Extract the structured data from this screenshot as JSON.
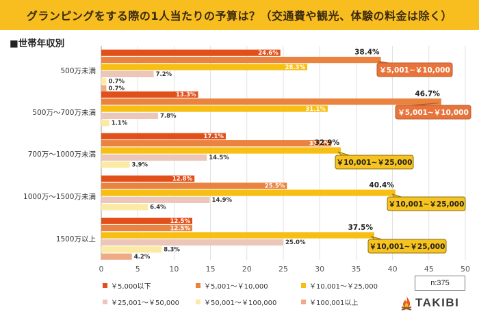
{
  "title": "グランピングをする際の1人当たりの予算は？（交通費や観光、体験の料金は除く）",
  "subtitle": "■世帯年収別",
  "sample_size": "n:375",
  "brand": "TAKIBI",
  "colors": {
    "title_bg": "#f8be1f",
    "series": [
      "#e1501a",
      "#eb8340",
      "#f7be14",
      "#ecc7b9",
      "#fbeaa4",
      "#eeac86"
    ],
    "callout_dark": "#e8743b",
    "callout_gold": "#f7c31e"
  },
  "chart_data": {
    "type": "bar",
    "orientation": "horizontal",
    "categories": [
      "500万未満",
      "500万～700万未満",
      "700万～1000万未満",
      "1000万～1500万未満",
      "1500万以上"
    ],
    "series": [
      {
        "name": "￥5,000以下",
        "values": [
          24.6,
          13.3,
          17.1,
          12.8,
          12.5
        ]
      },
      {
        "name": "￥5,001～￥10,000",
        "values": [
          38.4,
          46.7,
          31.6,
          25.5,
          12.5
        ]
      },
      {
        "name": "￥10,001～￥25,000",
        "values": [
          28.3,
          31.1,
          32.9,
          40.4,
          37.5
        ]
      },
      {
        "name": "￥25,001～￥50,000",
        "values": [
          7.2,
          7.8,
          14.5,
          14.9,
          25.0
        ]
      },
      {
        "name": "￥50,001～￥100,000",
        "values": [
          0.7,
          1.1,
          3.9,
          6.4,
          8.3
        ]
      },
      {
        "name": "￥100,001以上",
        "values": [
          0.7,
          null,
          null,
          null,
          4.2
        ]
      }
    ],
    "data_labels": [
      [
        "24.6%",
        "38.4%",
        "28.3%",
        "7.2%",
        "0.7%",
        "0.7%"
      ],
      [
        "13.3%",
        "46.7%",
        "31.1%",
        "7.8%",
        "1.1%",
        ""
      ],
      [
        "17.1%",
        "31.6%",
        "32.9%",
        "14.5%",
        "3.9%",
        ""
      ],
      [
        "12.8%",
        "25.5%",
        "40.4%",
        "14.9%",
        "6.4%",
        ""
      ],
      [
        "12.5%",
        "12.5%",
        "37.5%",
        "25.0%",
        "8.3%",
        "4.2%"
      ]
    ],
    "callouts": [
      {
        "group": 0,
        "series": 1,
        "text": "￥5,001~￥10,000"
      },
      {
        "group": 1,
        "series": 1,
        "text": "￥5,001~￥10,000"
      },
      {
        "group": 2,
        "series": 2,
        "text": "￥10,001~￥25,000"
      },
      {
        "group": 3,
        "series": 2,
        "text": "￥10,001~￥25,000"
      },
      {
        "group": 4,
        "series": 2,
        "text": "￥10,001~￥25,000"
      }
    ],
    "xlim": [
      0,
      50
    ],
    "xticks": [
      0,
      5,
      10,
      15,
      20,
      25,
      30,
      35,
      40,
      45,
      50
    ],
    "legend_position": "bottom"
  }
}
